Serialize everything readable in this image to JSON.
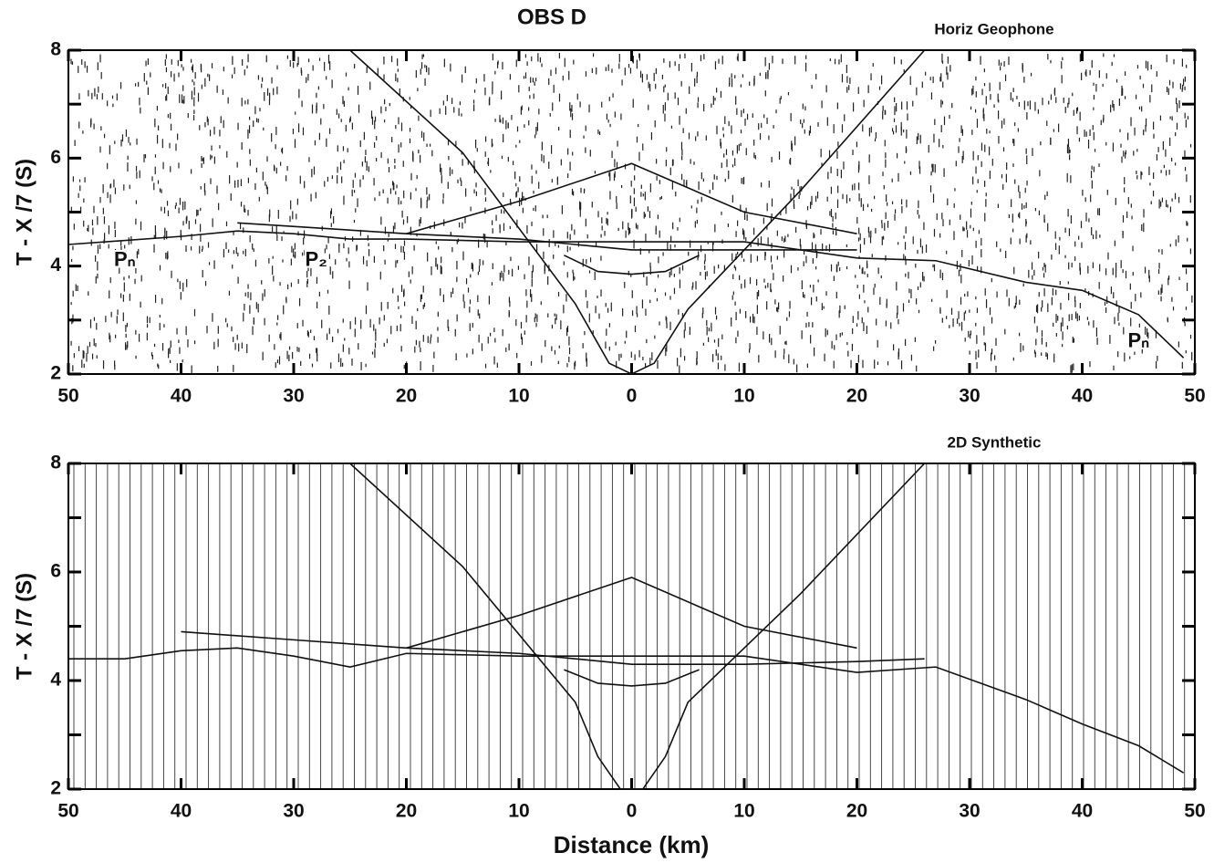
{
  "chart_data": [
    {
      "type": "line",
      "title": "OBS D",
      "subtitle": "Horiz Geophone",
      "ylabel": "T - X /7 (S)",
      "xlim": [
        -50,
        50
      ],
      "xticks": [
        {
          "value": -50,
          "label": "50"
        },
        {
          "value": -40,
          "label": "40"
        },
        {
          "value": -30,
          "label": "30"
        },
        {
          "value": -20,
          "label": "20"
        },
        {
          "value": -10,
          "label": "10"
        },
        0,
        10,
        20,
        30,
        40,
        50
      ],
      "ylim": [
        2,
        8
      ],
      "yticks": [
        2,
        4,
        6,
        8
      ],
      "yminor": [
        3,
        5,
        7
      ],
      "series": [
        {
          "color": "#111",
          "x": [
            -50,
            -40,
            -35,
            -30,
            -25,
            -20,
            -10,
            0,
            10,
            20,
            27,
            35,
            40,
            45,
            49
          ],
          "values": [
            4.4,
            4.55,
            4.65,
            4.6,
            4.5,
            4.5,
            4.45,
            4.45,
            4.45,
            4.15,
            4.1,
            3.7,
            3.55,
            3.1,
            2.3
          ]
        },
        {
          "color": "#111",
          "x": [
            -25,
            -15,
            -5,
            -2,
            0,
            2,
            5,
            15,
            26
          ],
          "values": [
            8,
            6.1,
            3.3,
            2.2,
            2.0,
            2.2,
            3.2,
            5.4,
            8
          ]
        },
        {
          "color": "#111",
          "x": [
            -20,
            -10,
            0,
            10,
            20
          ],
          "values": [
            4.6,
            5.2,
            5.9,
            5.0,
            4.6
          ]
        },
        {
          "color": "#111",
          "x": [
            -35,
            -20,
            -10,
            0,
            10,
            20
          ],
          "values": [
            4.8,
            4.6,
            4.5,
            4.3,
            4.3,
            4.3
          ]
        },
        {
          "color": "#111",
          "x": [
            -6,
            -3,
            0,
            3,
            6
          ],
          "values": [
            4.2,
            3.9,
            3.85,
            3.9,
            4.2
          ]
        }
      ],
      "annotations": [
        {
          "text": "Pₙ"
        },
        {
          "text": "P₂"
        },
        {
          "text": "Pₙ"
        }
      ]
    },
    {
      "type": "line",
      "subtitle": "2D Synthetic",
      "ylabel": "T - X /7 (S)",
      "xlabel": "Distance (km)",
      "xlim": [
        -50,
        50
      ],
      "xticks": [
        {
          "value": -50,
          "label": "50"
        },
        {
          "value": -40,
          "label": "40"
        },
        {
          "value": -30,
          "label": "30"
        },
        {
          "value": -20,
          "label": "20"
        },
        {
          "value": -10,
          "label": "10"
        },
        0,
        10,
        20,
        30,
        40,
        50
      ],
      "ylim": [
        2,
        8
      ],
      "yticks": [
        2,
        4,
        6,
        8
      ],
      "yminor": [
        3,
        5,
        7
      ],
      "series": [
        {
          "color": "#111",
          "x": [
            -50,
            -45,
            -40,
            -35,
            -30,
            -25,
            -20,
            -10,
            0,
            10,
            20,
            27,
            35,
            40,
            45,
            49
          ],
          "values": [
            4.4,
            4.4,
            4.55,
            4.6,
            4.45,
            4.25,
            4.5,
            4.45,
            4.45,
            4.45,
            4.15,
            4.25,
            3.65,
            3.2,
            2.8,
            2.3
          ]
        },
        {
          "color": "#111",
          "x": [
            -25,
            -15,
            -5,
            -3,
            -1,
            1,
            3,
            5,
            15,
            26
          ],
          "values": [
            8,
            6.1,
            3.6,
            2.6,
            2.0,
            2.0,
            2.6,
            3.6,
            5.6,
            8
          ]
        },
        {
          "color": "#111",
          "x": [
            -20,
            -10,
            0,
            10,
            20
          ],
          "values": [
            4.6,
            5.2,
            5.9,
            5.0,
            4.6
          ]
        },
        {
          "color": "#111",
          "x": [
            -40,
            -30,
            -20,
            -10,
            0,
            10,
            20,
            26
          ],
          "values": [
            4.9,
            4.75,
            4.6,
            4.5,
            4.3,
            4.3,
            4.35,
            4.4
          ]
        },
        {
          "color": "#111",
          "x": [
            -6,
            -3,
            0,
            3,
            6
          ],
          "values": [
            4.2,
            3.95,
            3.9,
            3.95,
            4.2
          ]
        }
      ]
    }
  ]
}
